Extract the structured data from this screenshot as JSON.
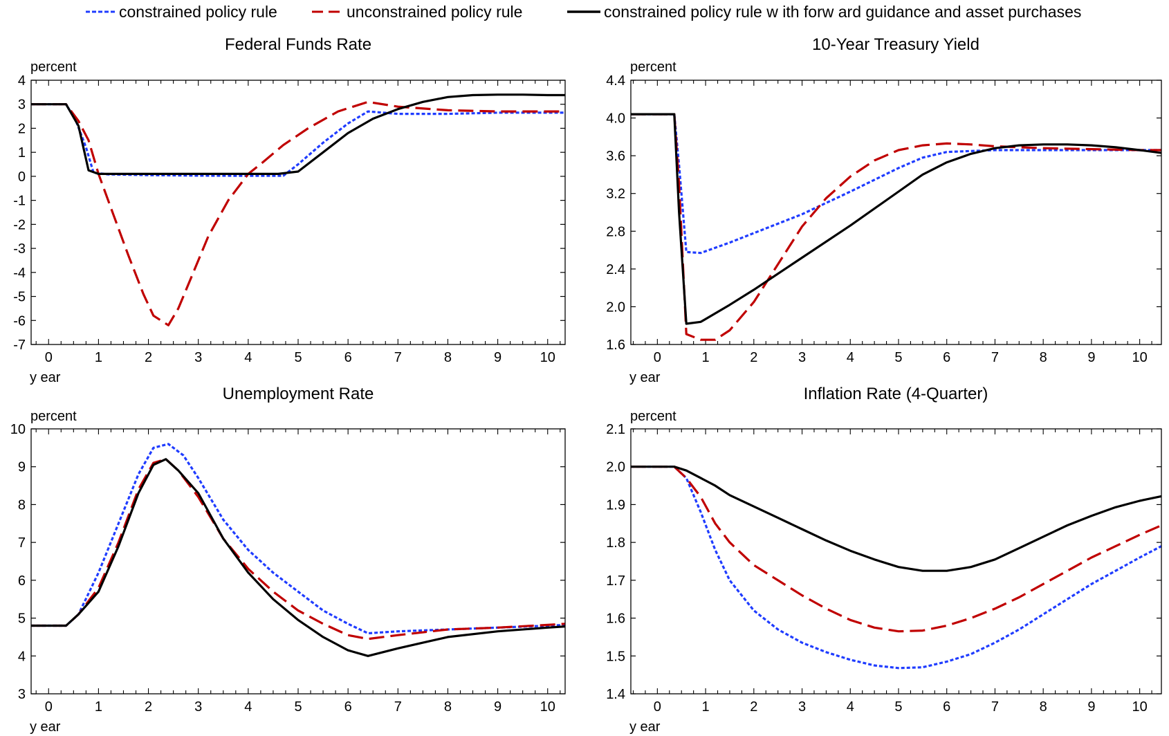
{
  "legend": {
    "placement": "top",
    "items": [
      {
        "label": "constrained policy rule",
        "color": "#1f3cff",
        "style": "dotted"
      },
      {
        "label": "unconstrained policy rule",
        "color": "#c00000",
        "style": "dashed"
      },
      {
        "label": "constrained policy rule w ith forw ard guidance and asset purchases",
        "color": "#000000",
        "style": "solid"
      }
    ]
  },
  "colors": {
    "constrained": "#1f3cff",
    "unconstrained": "#c00000",
    "guidance": "#000000"
  },
  "chart_data": [
    {
      "type": "line",
      "title": "Federal Funds Rate",
      "ylabel": "percent",
      "xlabel": "y ear",
      "xlim": [
        -0.35,
        10.35
      ],
      "ylim": [
        -7,
        4
      ],
      "xticks": [
        0,
        1,
        2,
        3,
        4,
        5,
        6,
        7,
        8,
        9,
        10
      ],
      "yticks": [
        -7,
        -6,
        -5,
        -4,
        -3,
        -2,
        -1,
        0,
        1,
        2,
        3,
        4
      ],
      "grid": false,
      "series": [
        {
          "name": "constrained policy rule",
          "style": "dotted",
          "x": [
            -0.35,
            0.35,
            0.55,
            0.75,
            0.9,
            1.2,
            2,
            3,
            4,
            4.7,
            5.0,
            5.5,
            6.0,
            6.4,
            7.0,
            8,
            9,
            10,
            10.35
          ],
          "y": [
            3,
            3,
            2.3,
            1.2,
            0.15,
            0.08,
            0.05,
            0.03,
            0.02,
            0.02,
            0.5,
            1.4,
            2.2,
            2.7,
            2.6,
            2.6,
            2.65,
            2.65,
            2.65
          ]
        },
        {
          "name": "unconstrained policy rule",
          "style": "dashed",
          "x": [
            -0.35,
            0.35,
            0.6,
            0.8,
            1.0,
            1.3,
            1.6,
            1.9,
            2.1,
            2.4,
            2.6,
            2.9,
            3.2,
            3.6,
            4.0,
            4.3,
            4.7,
            5.2,
            5.8,
            6.4,
            7,
            8,
            9,
            10,
            10.35
          ],
          "y": [
            3,
            3,
            2.3,
            1.5,
            0.1,
            -1.6,
            -3.3,
            -4.9,
            -5.8,
            -6.2,
            -5.5,
            -4.0,
            -2.5,
            -1.0,
            0.1,
            0.6,
            1.3,
            2.0,
            2.7,
            3.1,
            2.9,
            2.75,
            2.7,
            2.7,
            2.7
          ]
        },
        {
          "name": "constrained policy rule w ith forw ard guidance and asset purchases",
          "style": "solid",
          "x": [
            -0.35,
            0.35,
            0.6,
            0.8,
            1.0,
            2,
            3,
            4,
            4.6,
            5.0,
            5.5,
            6.0,
            6.5,
            7.0,
            7.5,
            8,
            8.5,
            9,
            9.5,
            10,
            10.35
          ],
          "y": [
            3,
            3,
            2.1,
            0.25,
            0.1,
            0.1,
            0.1,
            0.1,
            0.1,
            0.2,
            1.0,
            1.8,
            2.4,
            2.8,
            3.1,
            3.3,
            3.38,
            3.4,
            3.4,
            3.38,
            3.38
          ]
        }
      ]
    },
    {
      "type": "line",
      "title": "10-Year Treasury Yield",
      "ylabel": "percent",
      "xlabel": "y ear",
      "xlim": [
        -0.55,
        10.45
      ],
      "ylim": [
        1.6,
        4.4
      ],
      "xticks": [
        0,
        1,
        2,
        3,
        4,
        5,
        6,
        7,
        8,
        9,
        10
      ],
      "yticks": [
        1.6,
        2.0,
        2.4,
        2.8,
        3.2,
        3.6,
        4.0,
        4.4
      ],
      "ytick_labels": [
        "1.6",
        "2.0",
        "2.4",
        "2.8",
        "3.2",
        "3.6",
        "4.0",
        "4.4"
      ],
      "grid": false,
      "series": [
        {
          "name": "constrained policy rule",
          "style": "dotted",
          "x": [
            -0.55,
            0.35,
            0.45,
            0.6,
            0.9,
            1.5,
            2,
            3,
            4,
            5,
            5.5,
            6,
            7,
            8,
            9,
            10,
            10.45
          ],
          "y": [
            4.04,
            4.04,
            3.5,
            2.58,
            2.57,
            2.68,
            2.78,
            2.98,
            3.22,
            3.47,
            3.58,
            3.64,
            3.66,
            3.66,
            3.66,
            3.66,
            3.66
          ]
        },
        {
          "name": "unconstrained policy rule",
          "style": "dashed",
          "x": [
            -0.55,
            0.35,
            0.45,
            0.6,
            0.9,
            1.2,
            1.5,
            2.0,
            2.5,
            3.0,
            3.5,
            4.0,
            4.5,
            5.0,
            5.5,
            6.0,
            6.5,
            7.0,
            8,
            9,
            10,
            10.45
          ],
          "y": [
            4.04,
            4.04,
            3.3,
            1.71,
            1.65,
            1.65,
            1.75,
            2.05,
            2.45,
            2.85,
            3.15,
            3.38,
            3.55,
            3.66,
            3.71,
            3.73,
            3.72,
            3.7,
            3.68,
            3.67,
            3.66,
            3.66
          ]
        },
        {
          "name": "constrained policy rule w ith forw ard guidance and asset purchases",
          "style": "solid",
          "x": [
            -0.55,
            0.35,
            0.45,
            0.6,
            0.9,
            1.5,
            2,
            3,
            4,
            5,
            5.5,
            6,
            6.5,
            7,
            7.5,
            8,
            8.5,
            9,
            9.5,
            10,
            10.45
          ],
          "y": [
            4.04,
            4.04,
            3.0,
            1.82,
            1.84,
            2.02,
            2.18,
            2.52,
            2.86,
            3.22,
            3.4,
            3.53,
            3.62,
            3.68,
            3.71,
            3.72,
            3.72,
            3.71,
            3.69,
            3.66,
            3.63
          ]
        }
      ]
    },
    {
      "type": "line",
      "title": "Unemployment Rate",
      "ylabel": "percent",
      "xlabel": "y ear",
      "xlim": [
        -0.35,
        10.35
      ],
      "ylim": [
        3,
        10
      ],
      "xticks": [
        0,
        1,
        2,
        3,
        4,
        5,
        6,
        7,
        8,
        9,
        10
      ],
      "yticks": [
        3,
        4,
        5,
        6,
        7,
        8,
        9,
        10
      ],
      "grid": false,
      "series": [
        {
          "name": "constrained policy rule",
          "style": "dotted",
          "x": [
            -0.35,
            0.35,
            0.6,
            1.0,
            1.4,
            1.8,
            2.1,
            2.4,
            2.7,
            3.0,
            3.5,
            4.0,
            4.5,
            5.0,
            5.5,
            6.0,
            6.4,
            7.0,
            8,
            9,
            10,
            10.35
          ],
          "y": [
            4.8,
            4.8,
            5.1,
            6.2,
            7.5,
            8.8,
            9.5,
            9.6,
            9.3,
            8.7,
            7.6,
            6.8,
            6.2,
            5.7,
            5.2,
            4.85,
            4.6,
            4.65,
            4.7,
            4.75,
            4.8,
            4.82
          ]
        },
        {
          "name": "unconstrained policy rule",
          "style": "dashed",
          "x": [
            -0.35,
            0.35,
            0.6,
            1.0,
            1.4,
            1.8,
            2.1,
            2.35,
            2.6,
            3.0,
            3.5,
            4.0,
            4.5,
            5.0,
            5.5,
            6.0,
            6.4,
            7.0,
            8,
            9,
            10,
            10.35
          ],
          "y": [
            4.8,
            4.8,
            5.1,
            5.8,
            7.0,
            8.4,
            9.1,
            9.2,
            8.9,
            8.2,
            7.1,
            6.3,
            5.7,
            5.2,
            4.85,
            4.55,
            4.45,
            4.55,
            4.7,
            4.75,
            4.82,
            4.85
          ]
        },
        {
          "name": "constrained policy rule w ith forw ard guidance and asset purchases",
          "style": "solid",
          "x": [
            -0.35,
            0.35,
            0.6,
            1.0,
            1.4,
            1.8,
            2.1,
            2.35,
            2.6,
            3.0,
            3.5,
            4.0,
            4.5,
            5.0,
            5.5,
            6.0,
            6.4,
            7.0,
            7.5,
            8,
            9,
            10,
            10.35
          ],
          "y": [
            4.8,
            4.8,
            5.1,
            5.7,
            6.9,
            8.3,
            9.05,
            9.2,
            8.9,
            8.3,
            7.1,
            6.2,
            5.5,
            4.95,
            4.5,
            4.15,
            4.0,
            4.2,
            4.35,
            4.5,
            4.65,
            4.75,
            4.78
          ]
        }
      ]
    },
    {
      "type": "line",
      "title": "Inflation Rate (4-Quarter)",
      "ylabel": "percent",
      "xlabel": "y ear",
      "xlim": [
        -0.55,
        10.45
      ],
      "ylim": [
        1.4,
        2.1
      ],
      "xticks": [
        0,
        1,
        2,
        3,
        4,
        5,
        6,
        7,
        8,
        9,
        10
      ],
      "yticks": [
        1.4,
        1.5,
        1.6,
        1.7,
        1.8,
        1.9,
        2.0,
        2.1
      ],
      "ytick_labels": [
        "1.4",
        "1.5",
        "1.6",
        "1.7",
        "1.8",
        "1.9",
        "2.0",
        "2.1"
      ],
      "grid": false,
      "series": [
        {
          "name": "constrained policy rule",
          "style": "dotted",
          "x": [
            -0.55,
            0.35,
            0.6,
            0.9,
            1.2,
            1.5,
            2,
            2.5,
            3,
            3.5,
            4,
            4.5,
            5,
            5.5,
            6,
            6.5,
            7,
            7.5,
            8,
            8.5,
            9,
            9.5,
            10,
            10.45
          ],
          "y": [
            2.0,
            2.0,
            1.97,
            1.88,
            1.78,
            1.7,
            1.62,
            1.57,
            1.535,
            1.51,
            1.49,
            1.475,
            1.468,
            1.47,
            1.485,
            1.505,
            1.535,
            1.57,
            1.61,
            1.65,
            1.69,
            1.725,
            1.76,
            1.79
          ]
        },
        {
          "name": "unconstrained policy rule",
          "style": "dashed",
          "x": [
            -0.55,
            0.35,
            0.6,
            0.9,
            1.2,
            1.5,
            2,
            2.5,
            3,
            3.5,
            4,
            4.5,
            5,
            5.5,
            6,
            6.5,
            7,
            7.5,
            8,
            8.5,
            9,
            9.5,
            10,
            10.45
          ],
          "y": [
            2.0,
            2.0,
            1.97,
            1.92,
            1.85,
            1.8,
            1.74,
            1.7,
            1.66,
            1.625,
            1.595,
            1.575,
            1.565,
            1.567,
            1.58,
            1.6,
            1.625,
            1.655,
            1.69,
            1.725,
            1.76,
            1.79,
            1.82,
            1.845
          ]
        },
        {
          "name": "constrained policy rule w ith forw ard guidance and asset purchases",
          "style": "solid",
          "x": [
            -0.55,
            0.35,
            0.6,
            0.9,
            1.2,
            1.5,
            2,
            2.5,
            3,
            3.5,
            4,
            4.5,
            5,
            5.5,
            6,
            6.5,
            7,
            7.5,
            8,
            8.5,
            9,
            9.5,
            10,
            10.45
          ],
          "y": [
            2.0,
            2.0,
            1.99,
            1.97,
            1.95,
            1.925,
            1.895,
            1.865,
            1.835,
            1.805,
            1.778,
            1.755,
            1.735,
            1.725,
            1.725,
            1.735,
            1.755,
            1.785,
            1.815,
            1.845,
            1.87,
            1.893,
            1.91,
            1.922
          ]
        }
      ]
    }
  ]
}
